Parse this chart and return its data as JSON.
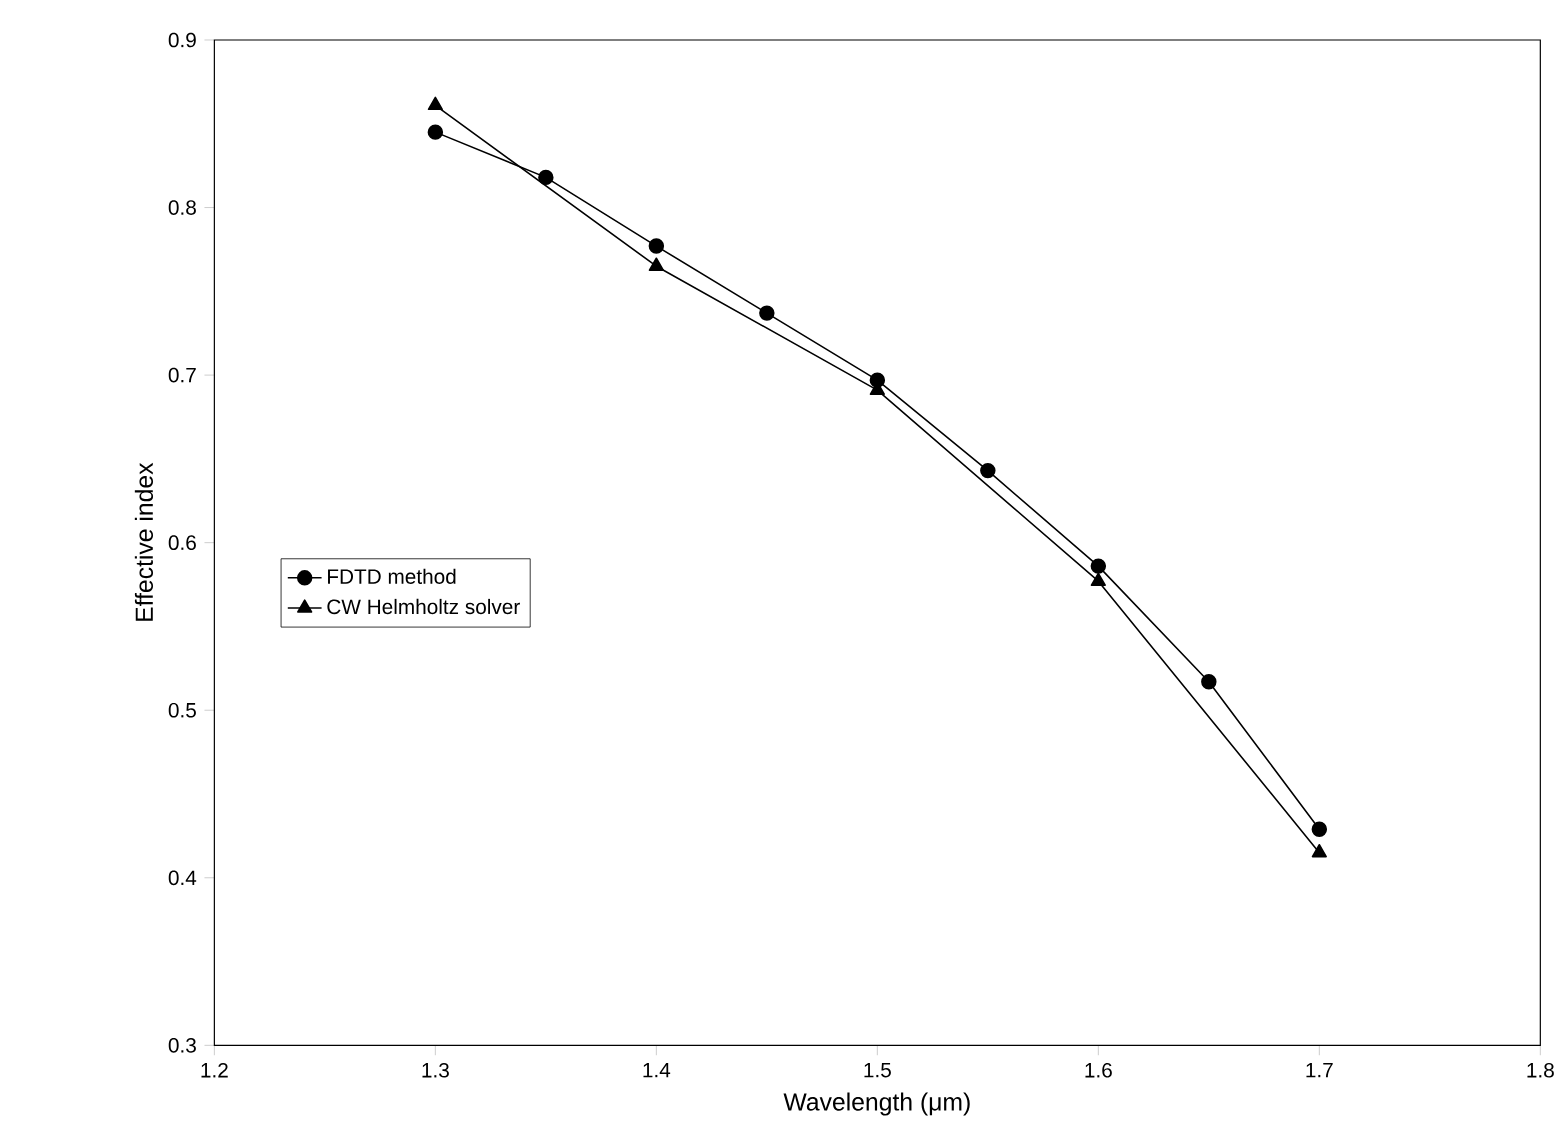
{
  "chart_data": {
    "type": "line",
    "xlabel": "Wavelength (μm)",
    "ylabel": "Effective index",
    "xlim": [
      1.2,
      1.8
    ],
    "xticks": [
      1.2,
      1.3,
      1.4,
      1.5,
      1.6,
      1.7,
      1.8
    ],
    "ylim": [
      0.3,
      0.9
    ],
    "yticks": [
      0.3,
      0.4,
      0.5,
      0.6,
      0.7,
      0.8,
      0.9
    ],
    "grid": false,
    "legend": "left",
    "series": [
      {
        "name": "FDTD method",
        "color": "#000000",
        "marker": "circle",
        "x": [
          1.3,
          1.35,
          1.4,
          1.45,
          1.5,
          1.55,
          1.6,
          1.65,
          1.7
        ],
        "values": [
          0.845,
          0.818,
          0.777,
          0.737,
          0.697,
          0.643,
          0.586,
          0.517,
          0.429
        ]
      },
      {
        "name": "CW Helmholtz solver",
        "color": "#000000",
        "marker": "triangle",
        "x": [
          1.3,
          1.4,
          1.5,
          1.6,
          1.7
        ],
        "values": [
          0.861,
          0.765,
          0.691,
          0.577,
          0.415
        ]
      }
    ]
  }
}
